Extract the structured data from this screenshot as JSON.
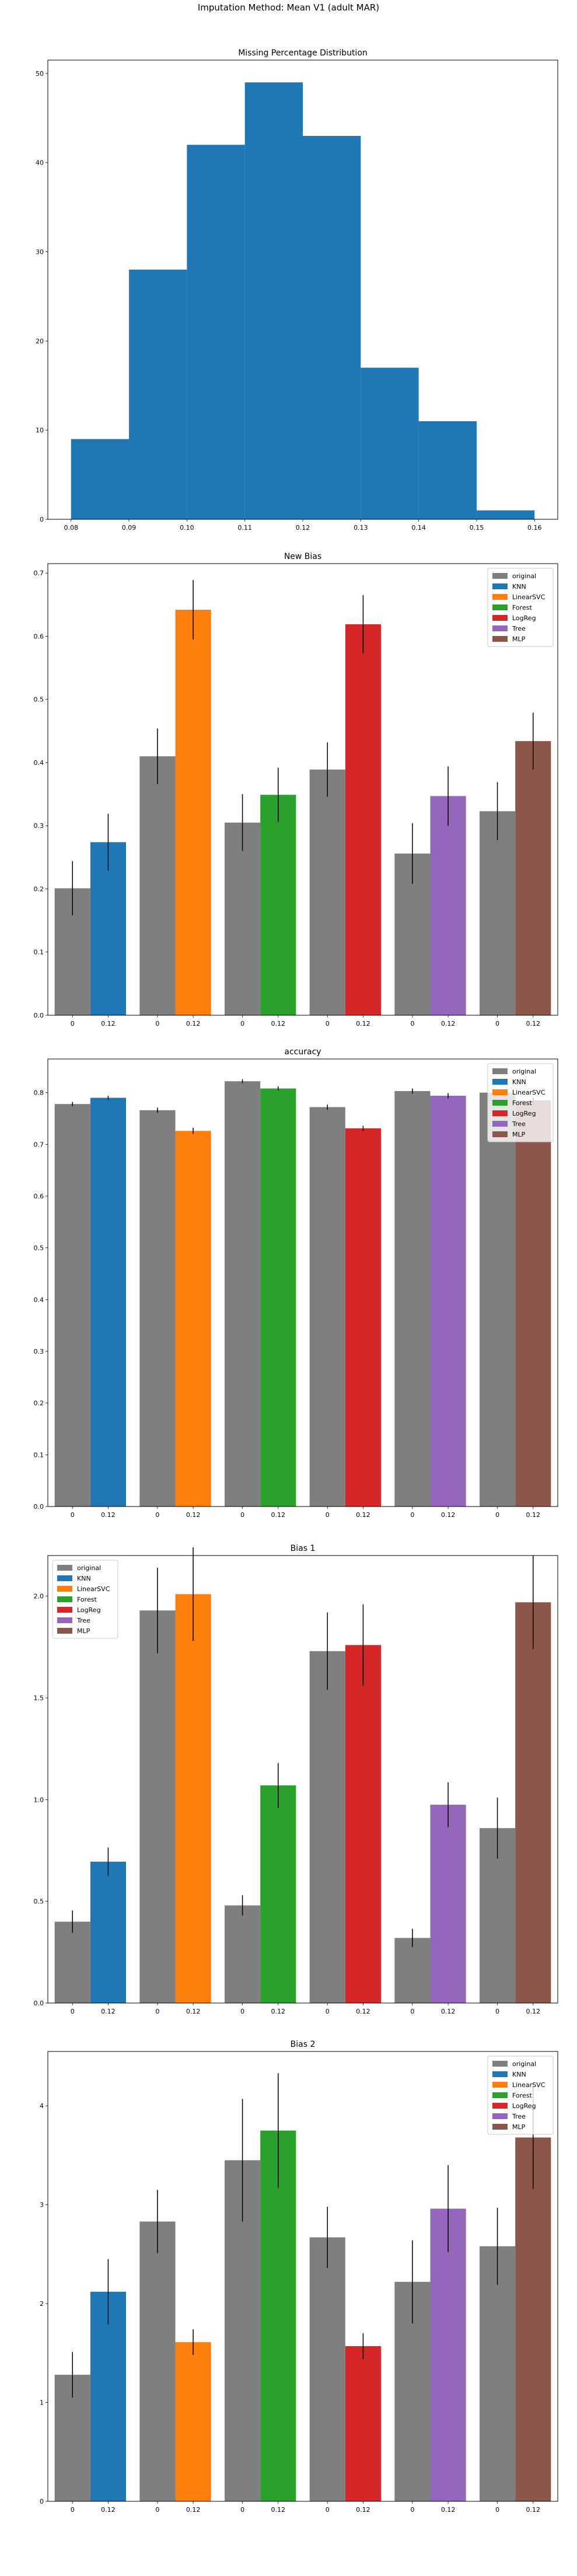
{
  "figure_title": "Imputation Method: Mean V1 (adult MAR)",
  "colors": {
    "original": "#7f7f7f",
    "KNN": "#1f77b4",
    "LinearSVC": "#ff7f0e",
    "Forest": "#2ca02c",
    "LogReg": "#d62728",
    "Tree": "#9467bd",
    "MLP": "#8c564b"
  },
  "chart_data": [
    {
      "type": "histogram",
      "title": "Missing Percentage Distribution",
      "xlabel": "",
      "ylabel": "",
      "bins": [
        0.08,
        0.09,
        0.1,
        0.11,
        0.12,
        0.13,
        0.14,
        0.15,
        0.16
      ],
      "counts": [
        9,
        28,
        42,
        49,
        43,
        17,
        11,
        1
      ],
      "xlim": [
        0.076,
        0.164
      ],
      "ylim": [
        0,
        51.5
      ],
      "xticks": [
        "0.08",
        "0.09",
        "0.10",
        "0.11",
        "0.12",
        "0.13",
        "0.14",
        "0.15",
        "0.16"
      ],
      "yticks": [
        0,
        10,
        20,
        30,
        40,
        50
      ],
      "grid": false
    },
    {
      "type": "bar",
      "title": "New Bias",
      "ylim": [
        0,
        0.715
      ],
      "yticks": [
        0.0,
        0.1,
        0.2,
        0.3,
        0.4,
        0.5,
        0.6,
        0.7
      ],
      "legend_position": "top-right",
      "groups": [
        {
          "model": "KNN",
          "original": 0.201,
          "original_err": 0.043,
          "imputed": 0.274,
          "imputed_err": 0.045
        },
        {
          "model": "LinearSVC",
          "original": 0.41,
          "original_err": 0.044,
          "imputed": 0.642,
          "imputed_err": 0.047
        },
        {
          "model": "Forest",
          "original": 0.305,
          "original_err": 0.045,
          "imputed": 0.349,
          "imputed_err": 0.043
        },
        {
          "model": "LogReg",
          "original": 0.389,
          "original_err": 0.043,
          "imputed": 0.619,
          "imputed_err": 0.046
        },
        {
          "model": "Tree",
          "original": 0.256,
          "original_err": 0.048,
          "imputed": 0.347,
          "imputed_err": 0.047
        },
        {
          "model": "MLP",
          "original": 0.323,
          "original_err": 0.046,
          "imputed": 0.434,
          "imputed_err": 0.045
        }
      ],
      "tick_labels": [
        "0",
        "0.12"
      ],
      "legend": [
        "original",
        "KNN",
        "LinearSVC",
        "Forest",
        "LogReg",
        "Tree",
        "MLP"
      ]
    },
    {
      "type": "bar",
      "title": "accuracy",
      "ylim": [
        0,
        0.865
      ],
      "yticks": [
        0.0,
        0.1,
        0.2,
        0.3,
        0.4,
        0.5,
        0.6,
        0.7,
        0.8
      ],
      "legend_position": "top-right",
      "groups": [
        {
          "model": "KNN",
          "original": 0.778,
          "original_err": 0.004,
          "imputed": 0.79,
          "imputed_err": 0.004
        },
        {
          "model": "LinearSVC",
          "original": 0.766,
          "original_err": 0.005,
          "imputed": 0.726,
          "imputed_err": 0.006
        },
        {
          "model": "Forest",
          "original": 0.822,
          "original_err": 0.004,
          "imputed": 0.808,
          "imputed_err": 0.004
        },
        {
          "model": "LogReg",
          "original": 0.772,
          "original_err": 0.005,
          "imputed": 0.731,
          "imputed_err": 0.005
        },
        {
          "model": "Tree",
          "original": 0.803,
          "original_err": 0.005,
          "imputed": 0.794,
          "imputed_err": 0.005
        },
        {
          "model": "MLP",
          "original": 0.8,
          "original_err": 0.005,
          "imputed": 0.785,
          "imputed_err": 0.006
        }
      ],
      "tick_labels": [
        "0",
        "0.12"
      ],
      "legend": [
        "original",
        "KNN",
        "LinearSVC",
        "Forest",
        "LogReg",
        "Tree",
        "MLP"
      ]
    },
    {
      "type": "bar",
      "title": "Bias 1",
      "ylim": [
        0,
        2.2
      ],
      "yticks": [
        0.0,
        0.5,
        1.0,
        1.5,
        2.0
      ],
      "legend_position": "top-left",
      "groups": [
        {
          "model": "KNN",
          "original": 0.4,
          "original_err": 0.055,
          "imputed": 0.695,
          "imputed_err": 0.07
        },
        {
          "model": "LinearSVC",
          "original": 1.93,
          "original_err": 0.21,
          "imputed": 2.01,
          "imputed_err": 0.23
        },
        {
          "model": "Forest",
          "original": 0.48,
          "original_err": 0.05,
          "imputed": 1.07,
          "imputed_err": 0.11
        },
        {
          "model": "LogReg",
          "original": 1.73,
          "original_err": 0.19,
          "imputed": 1.76,
          "imputed_err": 0.2
        },
        {
          "model": "Tree",
          "original": 0.32,
          "original_err": 0.045,
          "imputed": 0.975,
          "imputed_err": 0.11
        },
        {
          "model": "MLP",
          "original": 0.86,
          "original_err": 0.15,
          "imputed": 1.97,
          "imputed_err": 0.23
        }
      ],
      "tick_labels": [
        "0",
        "0.12"
      ],
      "legend": [
        "original",
        "KNN",
        "LinearSVC",
        "Forest",
        "LogReg",
        "Tree",
        "MLP"
      ]
    },
    {
      "type": "bar",
      "title": "Bias 2",
      "ylim": [
        0,
        4.55
      ],
      "yticks": [
        0,
        1,
        2,
        3,
        4
      ],
      "legend_position": "top-right",
      "groups": [
        {
          "model": "KNN",
          "original": 1.28,
          "original_err": 0.23,
          "imputed": 2.12,
          "imputed_err": 0.33
        },
        {
          "model": "LinearSVC",
          "original": 2.83,
          "original_err": 0.32,
          "imputed": 1.61,
          "imputed_err": 0.13
        },
        {
          "model": "Forest",
          "original": 3.45,
          "original_err": 0.62,
          "imputed": 3.75,
          "imputed_err": 0.58
        },
        {
          "model": "LogReg",
          "original": 2.67,
          "original_err": 0.31,
          "imputed": 1.57,
          "imputed_err": 0.13
        },
        {
          "model": "Tree",
          "original": 2.22,
          "original_err": 0.42,
          "imputed": 2.96,
          "imputed_err": 0.44
        },
        {
          "model": "MLP",
          "original": 2.58,
          "original_err": 0.39,
          "imputed": 3.68,
          "imputed_err": 0.52
        }
      ],
      "tick_labels": [
        "0",
        "0.12"
      ],
      "legend": [
        "original",
        "KNN",
        "LinearSVC",
        "Forest",
        "LogReg",
        "Tree",
        "MLP"
      ]
    }
  ]
}
